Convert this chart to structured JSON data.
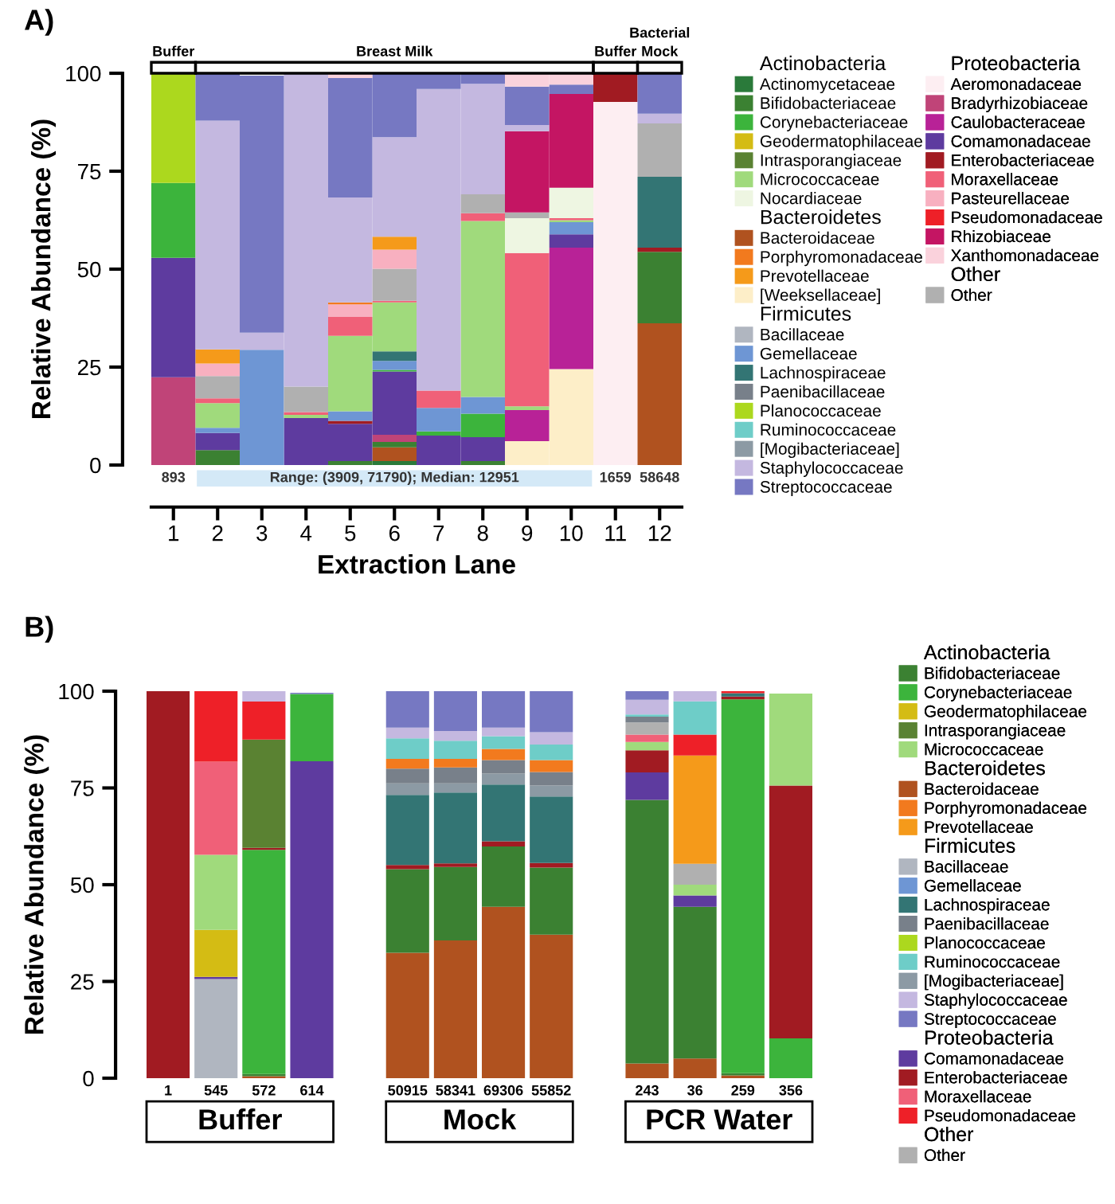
{
  "chart_data": [
    {
      "type": "bar",
      "stacked": true,
      "title": "A)",
      "xlabel": "Extraction Lane",
      "ylabel": "Relative Abundance (%)",
      "categories": [
        "1",
        "2",
        "3",
        "4",
        "5",
        "6",
        "7",
        "8",
        "9",
        "10",
        "11",
        "12"
      ],
      "ylim": [
        0,
        100
      ],
      "yticks": [
        0,
        25,
        50,
        75,
        100
      ],
      "legend": "right",
      "annotations": [
        "Buffer",
        "Breast Milk",
        "Buffer",
        "Bacterial\nMock",
        "893",
        "Range: (3909, 71790); Median: 12951",
        "1659",
        "58648",
        "Actinobacteria",
        "Bacteroidetes",
        "Firmicutes",
        "Proteobacteria",
        "Other"
      ],
      "series": [
        {
          "name": "[Weeksellaceae]",
          "color": "#fdeec8",
          "values": [
            null,
            null,
            null,
            null,
            null,
            null,
            null,
            null,
            6.1,
            24.5,
            null,
            null
          ]
        },
        {
          "name": "Actinomycetaceae",
          "color": "#2a7a3a",
          "values": [
            null,
            null,
            null,
            null,
            null,
            1.0,
            null,
            null,
            null,
            null,
            null,
            null
          ]
        },
        {
          "name": "Aeromonadaceae",
          "color": "#fdeef2",
          "values": [
            null,
            null,
            null,
            null,
            null,
            null,
            null,
            null,
            null,
            null,
            92.7,
            null
          ]
        },
        {
          "name": "Bacteroidaceae",
          "color": "#b0521f",
          "values": [
            null,
            null,
            null,
            null,
            null,
            3.5,
            null,
            null,
            null,
            null,
            null,
            36.2
          ]
        },
        {
          "name": "Bifidobacteriaceae",
          "color": "#3b8132",
          "values": [
            null,
            3.8,
            null,
            null,
            1.0,
            1.4,
            null,
            1.0,
            null,
            null,
            null,
            18.2
          ]
        },
        {
          "name": "Bradyrhizobiaceae",
          "color": "#c04478",
          "values": [
            22.4,
            null,
            null,
            null,
            null,
            1.8,
            null,
            null,
            null,
            null,
            null,
            null
          ]
        },
        {
          "name": "Caulobacteraceae",
          "color": "#b82297",
          "values": [
            null,
            null,
            null,
            null,
            null,
            null,
            null,
            null,
            7.9,
            31.0,
            null,
            null
          ]
        },
        {
          "name": "Comamonadaceae",
          "color": "#5e3b9f",
          "values": [
            30.5,
            4.4,
            null,
            12.0,
            9.5,
            16.2,
            7.5,
            6.1,
            null,
            3.4,
            null,
            null
          ]
        },
        {
          "name": "Corynebacteriaceae",
          "color": "#3cb43c",
          "values": [
            19.1,
            null,
            null,
            null,
            null,
            0.4,
            1.1,
            6.0,
            null,
            null,
            null,
            null
          ]
        },
        {
          "name": "Enterobacteriaceae",
          "color": "#a11b22",
          "values": [
            null,
            null,
            null,
            null,
            0.8,
            null,
            null,
            null,
            null,
            null,
            7.3,
            1.1
          ]
        },
        {
          "name": "Gemellaceae",
          "color": "#6e96d4",
          "values": [
            null,
            1.3,
            29.4,
            null,
            2.4,
            2.3,
            6.0,
            4.3,
            null,
            3.1,
            null,
            null
          ]
        },
        {
          "name": "Lachnospiraceae",
          "color": "#337574",
          "values": [
            null,
            null,
            null,
            null,
            null,
            2.4,
            null,
            null,
            null,
            null,
            null,
            18.1
          ]
        },
        {
          "name": "Micrococcaceae",
          "color": "#a0da7c",
          "values": [
            null,
            6.3,
            null,
            0.8,
            19.3,
            12.5,
            null,
            44.9,
            1.0,
            0.5,
            null,
            null
          ]
        },
        {
          "name": "Moraxellaceae",
          "color": "#f06078",
          "values": [
            null,
            1.2,
            null,
            0.7,
            4.8,
            0.4,
            4.4,
            2.0,
            39.1,
            0.5,
            null,
            null
          ]
        },
        {
          "name": "Nocardiaceae",
          "color": "#eef6e2",
          "values": [
            null,
            null,
            null,
            null,
            null,
            null,
            null,
            null,
            8.9,
            7.8,
            null,
            null
          ]
        },
        {
          "name": "Other",
          "color": "#b0b0b0",
          "values": [
            null,
            5.7,
            null,
            6.5,
            null,
            8.2,
            null,
            4.8,
            1.5,
            null,
            null,
            13.6
          ]
        },
        {
          "name": "Pasteurellaceae",
          "color": "#f8b0c0",
          "values": [
            null,
            3.2,
            null,
            null,
            3.2,
            4.9,
            null,
            null,
            null,
            null,
            null,
            null
          ]
        },
        {
          "name": "Planococcaceae",
          "color": "#acd81e",
          "values": [
            28.0,
            null,
            null,
            null,
            null,
            null,
            null,
            null,
            null,
            null,
            null,
            null
          ]
        },
        {
          "name": "Porphyromonadaceae",
          "color": "#f27a1e",
          "values": [
            null,
            null,
            null,
            null,
            0.5,
            null,
            null,
            null,
            null,
            null,
            null,
            null
          ]
        },
        {
          "name": "Prevotellaceae",
          "color": "#f59a1a",
          "values": [
            null,
            3.6,
            null,
            null,
            null,
            3.3,
            null,
            null,
            null,
            null,
            null,
            null
          ]
        },
        {
          "name": "Rhizobiaceae",
          "color": "#c41563",
          "values": [
            null,
            null,
            null,
            null,
            null,
            null,
            null,
            null,
            20.7,
            23.9,
            null,
            null
          ]
        },
        {
          "name": "Staphylococcaceae",
          "color": "#c4b8e0",
          "values": [
            null,
            58.4,
            4.4,
            80.0,
            26.8,
            25.4,
            77.0,
            28.2,
            1.6,
            null,
            null,
            2.5
          ]
        },
        {
          "name": "Streptococcaceae",
          "color": "#7678c2",
          "values": [
            null,
            12.1,
            65.6,
            null,
            30.5,
            16.3,
            4.0,
            2.7,
            9.8,
            2.4,
            null,
            10.3
          ]
        },
        {
          "name": "Xanthomonadaceae",
          "color": "#fad2dc",
          "values": [
            null,
            null,
            null,
            null,
            1.2,
            null,
            null,
            null,
            3.4,
            2.9,
            null,
            null
          ]
        },
        {
          "name": "Bacillaceae",
          "color": "#b0b6c0",
          "values": [
            null,
            null,
            null,
            null,
            null,
            null,
            null,
            null,
            null,
            null,
            null,
            null
          ]
        },
        {
          "name": "Geodermatophilaceae",
          "color": "#d4bc14",
          "values": [
            null,
            null,
            null,
            null,
            null,
            null,
            null,
            null,
            null,
            null,
            null,
            null
          ]
        },
        {
          "name": "Intrasporangiaceae",
          "color": "#5a8232",
          "values": [
            null,
            null,
            null,
            null,
            null,
            null,
            null,
            null,
            null,
            null,
            null,
            null
          ]
        },
        {
          "name": "[Mogibacteriaceae]",
          "color": "#8c9aa4",
          "values": [
            null,
            null,
            null,
            null,
            null,
            null,
            null,
            null,
            null,
            null,
            null,
            null
          ]
        },
        {
          "name": "Paenibacillaceae",
          "color": "#78808a",
          "values": [
            null,
            null,
            null,
            null,
            null,
            null,
            null,
            null,
            null,
            null,
            null,
            null
          ]
        },
        {
          "name": "Pseudomonadaceae",
          "color": "#ee2028",
          "values": [
            null,
            null,
            null,
            null,
            null,
            null,
            null,
            null,
            null,
            null,
            null,
            null
          ]
        },
        {
          "name": "Ruminococcaceae",
          "color": "#6ecdc8",
          "values": [
            null,
            null,
            null,
            null,
            null,
            null,
            null,
            null,
            null,
            null,
            null,
            null
          ]
        }
      ]
    },
    {
      "type": "bar",
      "stacked": true,
      "title": "B)",
      "ylabel": "Relative Abundance (%)",
      "categories": [
        "1",
        "545",
        "572",
        "614",
        null,
        "50915",
        "58341",
        "69306",
        "55852",
        null,
        "243",
        "36",
        "259",
        "356"
      ],
      "ylim": [
        0,
        100
      ],
      "yticks": [
        0,
        25,
        50,
        75,
        100
      ],
      "legend": "right",
      "annotations": [
        "Buffer",
        "Mock",
        "PCR Water",
        "Actinobacteria",
        "Bacteroidetes",
        "Firmicutes",
        "Proteobacteria",
        "Other"
      ],
      "series": [
        {
          "name": "Bacillaceae",
          "color": "#b0b6c0",
          "values": [
            null,
            25.6,
            null,
            null,
            null,
            null,
            null,
            null,
            null,
            null,
            null,
            null,
            null,
            null
          ]
        },
        {
          "name": "Bacteroidaceae",
          "color": "#b0521f",
          "values": [
            null,
            null,
            0.5,
            null,
            null,
            32.4,
            35.6,
            44.3,
            37.1,
            null,
            3.8,
            5.1,
            0.7,
            null
          ]
        },
        {
          "name": "Bifidobacteriaceae",
          "color": "#3b8132",
          "values": [
            null,
            null,
            0.6,
            null,
            null,
            21.6,
            19.0,
            15.6,
            17.3,
            null,
            68.1,
            39.2,
            0.6,
            null
          ]
        },
        {
          "name": "Comamonadaceae",
          "color": "#5e3b9f",
          "values": [
            null,
            0.6,
            null,
            81.9,
            null,
            null,
            null,
            null,
            null,
            null,
            7.1,
            2.9,
            null,
            null
          ]
        },
        {
          "name": "Corynebacteriaceae",
          "color": "#3cb43c",
          "values": [
            null,
            null,
            57.9,
            17.4,
            null,
            null,
            null,
            null,
            null,
            null,
            null,
            null,
            96.6,
            10.3
          ]
        },
        {
          "name": "Enterobacteriaceae",
          "color": "#a11b22",
          "values": [
            100,
            null,
            0.5,
            null,
            null,
            1.1,
            0.9,
            1.3,
            1.2,
            null,
            5.7,
            null,
            0.7,
            65.3
          ]
        },
        {
          "name": "Gemellaceae",
          "color": "#6e96d4",
          "values": [
            null,
            null,
            null,
            null,
            null,
            null,
            null,
            null,
            null,
            null,
            null,
            null,
            null,
            null
          ]
        },
        {
          "name": "Geodermatophilaceae",
          "color": "#d4bc14",
          "values": [
            null,
            12.1,
            null,
            null,
            null,
            null,
            null,
            null,
            null,
            null,
            null,
            null,
            null,
            null
          ]
        },
        {
          "name": "Intrasporangiaceae",
          "color": "#5a8232",
          "values": [
            null,
            null,
            28.0,
            null,
            null,
            null,
            null,
            null,
            null,
            null,
            null,
            null,
            null,
            null
          ]
        },
        {
          "name": "Lachnospiraceae",
          "color": "#337574",
          "values": [
            null,
            null,
            null,
            null,
            null,
            18.1,
            18.3,
            14.7,
            17.2,
            null,
            null,
            null,
            0.9,
            null
          ]
        },
        {
          "name": "Micrococcaceae",
          "color": "#a0da7c",
          "values": [
            null,
            19.4,
            null,
            null,
            null,
            null,
            null,
            null,
            null,
            null,
            2.2,
            2.8,
            null,
            23.8
          ]
        },
        {
          "name": "[Mogibacteriaceae]",
          "color": "#8c9aa4",
          "values": [
            null,
            null,
            null,
            null,
            null,
            3.0,
            2.4,
            2.8,
            2.8,
            null,
            null,
            null,
            null,
            null
          ]
        },
        {
          "name": "Moraxellaceae",
          "color": "#f06078",
          "values": [
            null,
            24.1,
            null,
            null,
            null,
            null,
            null,
            null,
            null,
            null,
            1.9,
            null,
            null,
            null
          ]
        },
        {
          "name": "Other",
          "color": "#b0b0b0",
          "values": [
            null,
            null,
            null,
            null,
            null,
            null,
            null,
            null,
            null,
            null,
            3.1,
            5.4,
            null,
            null
          ]
        },
        {
          "name": "Paenibacillaceae",
          "color": "#78808a",
          "values": [
            null,
            null,
            null,
            null,
            null,
            3.8,
            4.1,
            3.5,
            3.5,
            null,
            1.5,
            null,
            null,
            null
          ]
        },
        {
          "name": "Planococcaceae",
          "color": "#acd81e",
          "values": [
            null,
            null,
            null,
            null,
            null,
            null,
            null,
            null,
            null,
            null,
            null,
            null,
            null,
            null
          ]
        },
        {
          "name": "Porphyromonadaceae",
          "color": "#f27a1e",
          "values": [
            null,
            null,
            null,
            null,
            null,
            2.5,
            2.2,
            2.9,
            3.1,
            null,
            null,
            null,
            null,
            null
          ]
        },
        {
          "name": "Prevotellaceae",
          "color": "#f59a1a",
          "values": [
            null,
            null,
            null,
            null,
            null,
            null,
            null,
            null,
            null,
            null,
            null,
            28.0,
            null,
            null
          ]
        },
        {
          "name": "Pseudomonadaceae",
          "color": "#ee2028",
          "values": [
            null,
            18.2,
            9.8,
            null,
            null,
            null,
            null,
            null,
            null,
            null,
            null,
            5.4,
            0.5,
            null
          ]
        },
        {
          "name": "Ruminococcaceae",
          "color": "#6ecdc8",
          "values": [
            null,
            null,
            null,
            null,
            null,
            5.3,
            4.7,
            3.3,
            4.0,
            null,
            0.6,
            8.6,
            null,
            null
          ]
        },
        {
          "name": "Staphylococcaceae",
          "color": "#c4b8e0",
          "values": [
            null,
            null,
            2.7,
            null,
            null,
            2.8,
            2.5,
            2.2,
            3.2,
            null,
            3.8,
            2.6,
            null,
            null
          ]
        },
        {
          "name": "Streptococcaceae",
          "color": "#7678c2",
          "values": [
            null,
            null,
            null,
            0.3,
            null,
            9.4,
            10.3,
            9.4,
            10.6,
            null,
            2.2,
            null,
            null,
            null
          ]
        }
      ]
    }
  ]
}
